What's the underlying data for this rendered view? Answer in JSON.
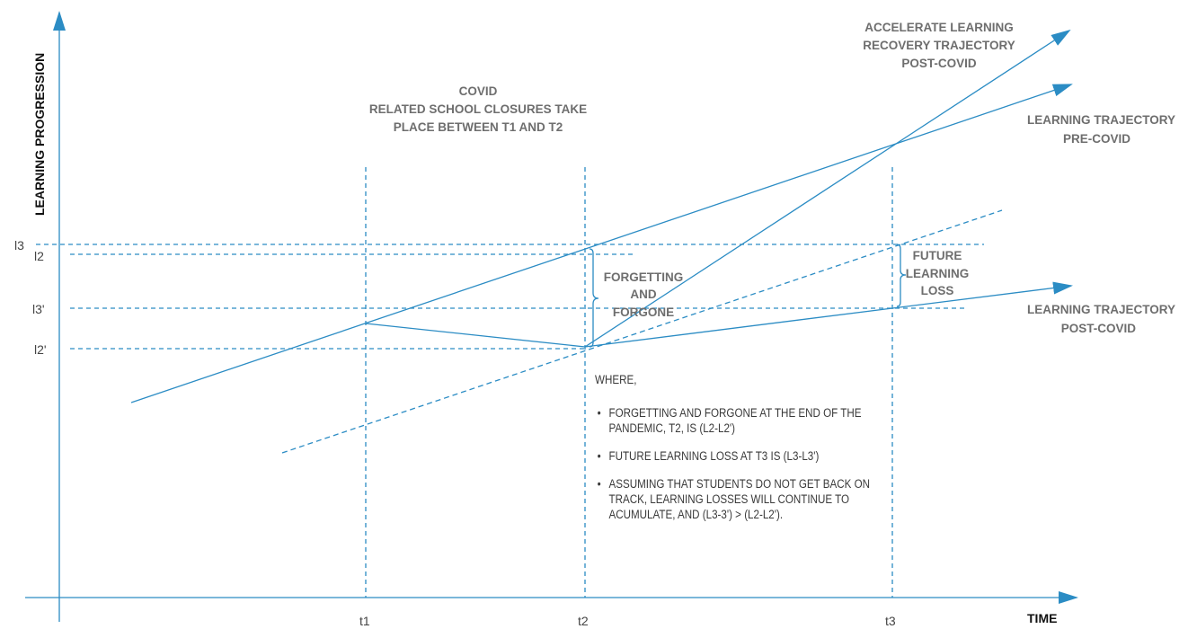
{
  "diagram": {
    "y_axis_label": "LEARNING PROGRESSION",
    "x_axis_label": "TIME",
    "time_ticks": [
      "t1",
      "t2",
      "t3"
    ],
    "level_ticks": [
      "l3",
      "l2",
      "l3'",
      "l2'"
    ],
    "covid_note": [
      "COVID",
      "RELATED SCHOOL CLOSURES TAKE",
      "PLACE BETWEEN T1 AND T2"
    ],
    "trajectory_labels": {
      "accelerate": [
        "ACCELERATE LEARNING",
        "RECOVERY TRAJECTORY",
        "POST-COVID"
      ],
      "pre_covid": [
        "LEARNING TRAJECTORY",
        "PRE-COVID"
      ],
      "post_covid": [
        "LEARNING TRAJECTORY",
        "POST-COVID"
      ]
    },
    "gap_labels": {
      "forgetting": [
        "FORGETTING",
        "AND",
        "FORGONE"
      ],
      "future_loss": [
        "FUTURE",
        "LEARNING",
        "LOSS"
      ]
    },
    "note": {
      "heading": "WHERE,",
      "bullets": [
        "FORGETTING AND FORGONE AT THE END OF THE PANDEMIC, T2, IS (L2-L2')",
        "FUTURE LEARNING LOSS AT T3 IS (L3-L3')",
        "ASSUMING THAT STUDENTS DO NOT GET BACK ON TRACK, LEARNING LOSSES WILL CONTINUE TO ACUMULATE, AND (L3-3') > (L2-L2')."
      ]
    },
    "colors": {
      "line": "#2b8cc4",
      "text": "#555555",
      "bold_text": "#6e6e6e"
    }
  }
}
